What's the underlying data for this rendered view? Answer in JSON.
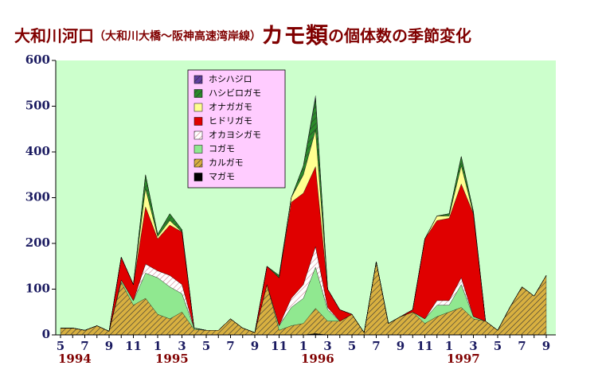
{
  "chart_data": {
    "type": "stacked-area",
    "title_parts": [
      "大和川河口",
      "（大和川大橋～阪神高速湾岸線）",
      "カモ類",
      "の個体数の季節変化"
    ],
    "categories": [
      "5",
      null,
      "7",
      null,
      "9",
      null,
      "11",
      null,
      "1",
      null,
      "3",
      null,
      "5",
      null,
      "7",
      null,
      "9",
      null,
      "11",
      null,
      "1",
      null,
      "3",
      null,
      "5",
      null,
      "7",
      null,
      "9",
      null,
      "11",
      null,
      "1",
      null,
      "3",
      null,
      "5",
      null,
      "7",
      null,
      "9"
    ],
    "year_labels": [
      "1994",
      null,
      null,
      null,
      null,
      null,
      null,
      null,
      "1995",
      null,
      null,
      null,
      null,
      null,
      null,
      null,
      null,
      null,
      null,
      null,
      "1996",
      null,
      null,
      null,
      null,
      null,
      null,
      null,
      null,
      null,
      null,
      null,
      "1997",
      null,
      null,
      null,
      null,
      null,
      null,
      null,
      null
    ],
    "ylim": [
      0,
      600
    ],
    "yticks": [
      0,
      100,
      200,
      300,
      400,
      500,
      600
    ],
    "plot_background": "#ccffcc",
    "legend_background": "#ffccff",
    "title_color": "#800000",
    "tick_color": "#1a1a60",
    "series": [
      {
        "name": "マガモ",
        "color": "#000000",
        "hatched": false,
        "values": [
          0,
          0,
          0,
          0,
          0,
          0,
          0,
          0,
          0,
          0,
          0,
          0,
          0,
          0,
          0,
          0,
          0,
          0,
          0,
          0,
          0,
          3,
          0,
          0,
          0,
          0,
          0,
          0,
          0,
          0,
          0,
          0,
          0,
          0,
          0,
          0,
          0,
          0,
          0,
          0,
          0
        ]
      },
      {
        "name": "カルガモ",
        "color": "#d8b040",
        "hatched": true,
        "values": [
          15,
          15,
          10,
          20,
          8,
          115,
          65,
          80,
          45,
          35,
          50,
          12,
          10,
          10,
          35,
          15,
          5,
          110,
          10,
          20,
          25,
          55,
          30,
          30,
          45,
          5,
          160,
          25,
          40,
          50,
          25,
          40,
          50,
          60,
          35,
          30,
          10,
          60,
          105,
          85,
          130
        ]
      },
      {
        "name": "コガモ",
        "color": "#90e890",
        "hatched": false,
        "values": [
          0,
          0,
          0,
          0,
          0,
          5,
          10,
          55,
          80,
          70,
          40,
          3,
          0,
          0,
          0,
          0,
          0,
          0,
          10,
          40,
          55,
          90,
          25,
          0,
          0,
          0,
          0,
          0,
          0,
          0,
          10,
          25,
          15,
          50,
          5,
          0,
          0,
          0,
          0,
          0,
          0
        ]
      },
      {
        "name": "オカヨシガモ",
        "color": "#ffffff",
        "hatched": true,
        "values": [
          0,
          0,
          0,
          0,
          0,
          0,
          0,
          20,
          15,
          25,
          20,
          0,
          0,
          0,
          0,
          0,
          0,
          0,
          0,
          20,
          30,
          45,
          5,
          0,
          0,
          0,
          0,
          0,
          0,
          0,
          0,
          10,
          10,
          15,
          0,
          0,
          0,
          0,
          0,
          0,
          0
        ]
      },
      {
        "name": "ヒドリガモ",
        "color": "#e00000",
        "hatched": false,
        "values": [
          0,
          0,
          0,
          0,
          0,
          50,
          35,
          125,
          70,
          110,
          115,
          0,
          0,
          0,
          0,
          0,
          0,
          40,
          105,
          210,
          200,
          175,
          40,
          25,
          0,
          0,
          0,
          0,
          0,
          5,
          175,
          175,
          180,
          205,
          225,
          0,
          0,
          0,
          0,
          0,
          0
        ]
      },
      {
        "name": "オナガガモ",
        "color": "#ffff90",
        "hatched": false,
        "values": [
          0,
          0,
          0,
          0,
          0,
          0,
          0,
          40,
          5,
          10,
          0,
          0,
          0,
          0,
          0,
          0,
          0,
          0,
          0,
          10,
          40,
          80,
          0,
          0,
          0,
          0,
          0,
          0,
          0,
          0,
          0,
          10,
          5,
          40,
          0,
          0,
          0,
          0,
          0,
          0,
          0
        ]
      },
      {
        "name": "ハシビロガモ",
        "color": "#2a8a2a",
        "hatched": true,
        "values": [
          0,
          0,
          0,
          0,
          0,
          0,
          0,
          30,
          5,
          15,
          5,
          0,
          0,
          0,
          0,
          0,
          0,
          0,
          5,
          0,
          20,
          70,
          0,
          0,
          0,
          0,
          0,
          0,
          0,
          0,
          0,
          0,
          5,
          20,
          5,
          0,
          0,
          0,
          0,
          0,
          0
        ]
      },
      {
        "name": "ホシハジロ",
        "color": "#6040a0",
        "hatched": true,
        "values": [
          0,
          0,
          0,
          0,
          0,
          0,
          0,
          0,
          0,
          0,
          0,
          0,
          0,
          0,
          0,
          0,
          0,
          0,
          0,
          0,
          0,
          5,
          0,
          0,
          0,
          0,
          0,
          0,
          0,
          0,
          0,
          0,
          0,
          0,
          0,
          0,
          0,
          0,
          0,
          0,
          0
        ]
      }
    ]
  }
}
